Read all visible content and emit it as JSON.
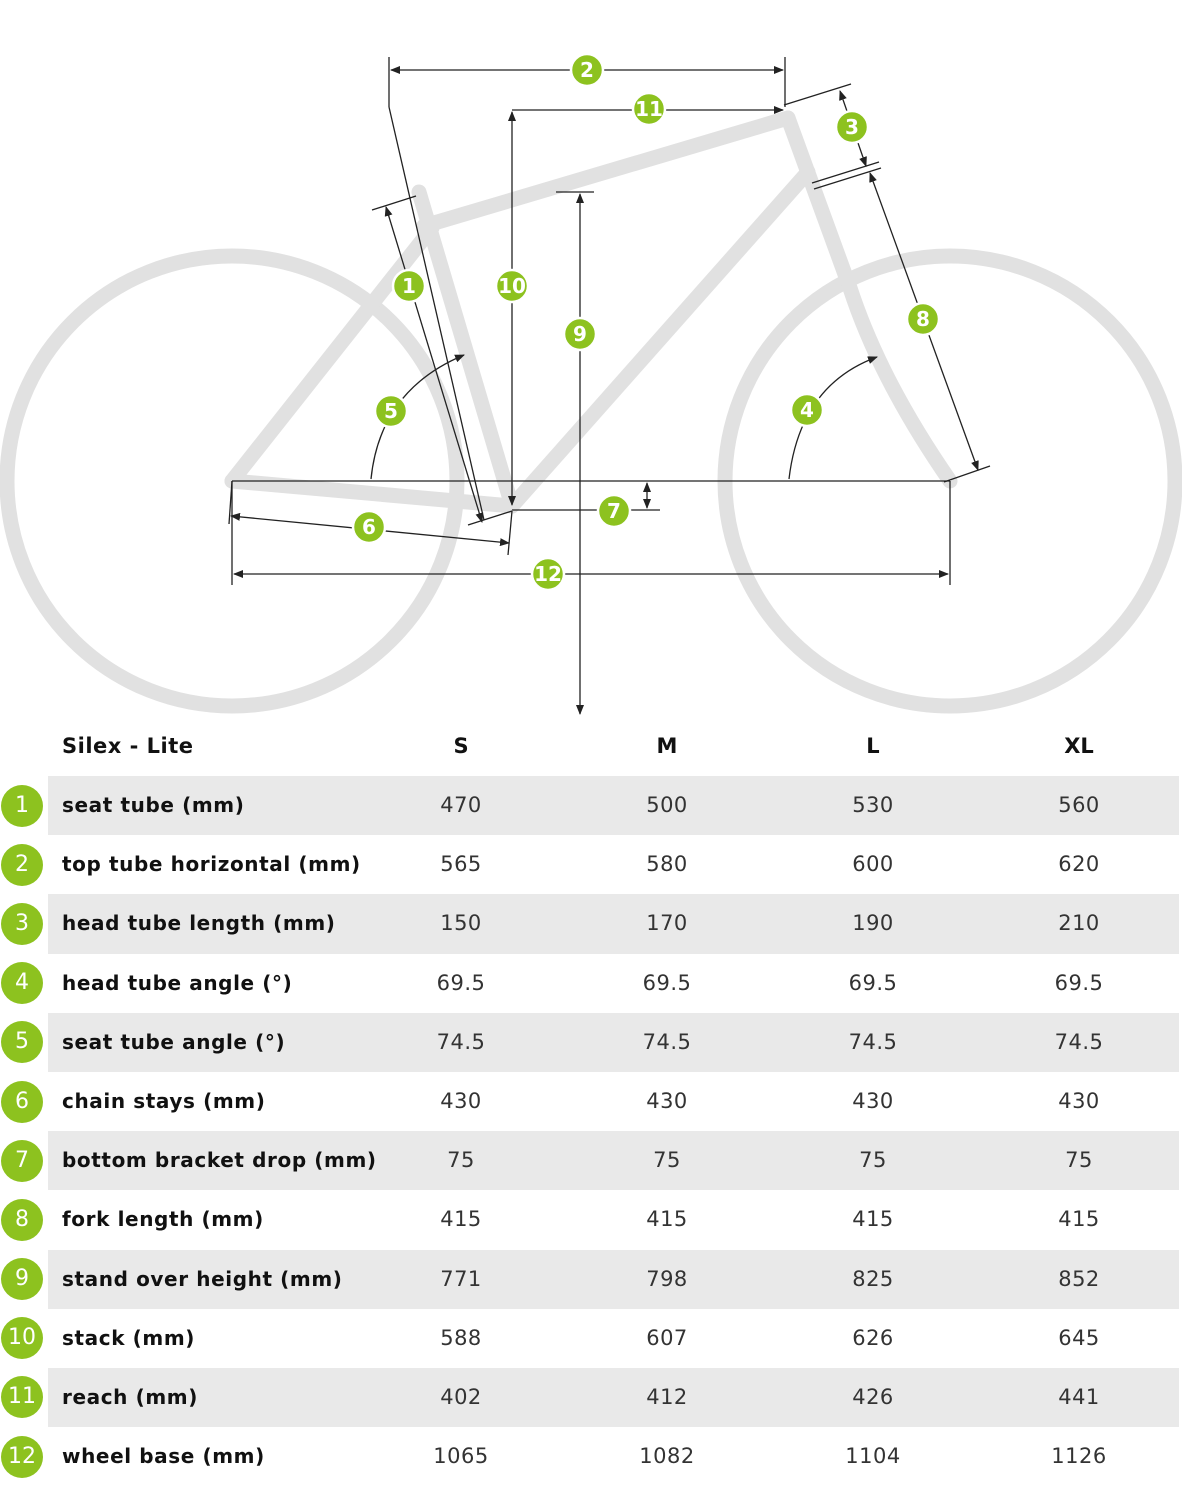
{
  "diagram": {
    "badges": [
      "1",
      "2",
      "3",
      "4",
      "5",
      "6",
      "7",
      "8",
      "9",
      "10",
      "11",
      "12"
    ]
  },
  "table": {
    "model": "Silex - Lite",
    "sizes": [
      "S",
      "M",
      "L",
      "XL"
    ],
    "rows": [
      {
        "num": "1",
        "label": "seat tube (mm)",
        "values": [
          "470",
          "500",
          "530",
          "560"
        ]
      },
      {
        "num": "2",
        "label": "top tube horizontal (mm)",
        "values": [
          "565",
          "580",
          "600",
          "620"
        ]
      },
      {
        "num": "3",
        "label": "head tube length (mm)",
        "values": [
          "150",
          "170",
          "190",
          "210"
        ]
      },
      {
        "num": "4",
        "label": "head tube angle (°)",
        "values": [
          "69.5",
          "69.5",
          "69.5",
          "69.5"
        ]
      },
      {
        "num": "5",
        "label": "seat tube angle (°)",
        "values": [
          "74.5",
          "74.5",
          "74.5",
          "74.5"
        ]
      },
      {
        "num": "6",
        "label": "chain stays (mm)",
        "values": [
          "430",
          "430",
          "430",
          "430"
        ]
      },
      {
        "num": "7",
        "label": "bottom bracket drop (mm)",
        "values": [
          "75",
          "75",
          "75",
          "75"
        ]
      },
      {
        "num": "8",
        "label": "fork length (mm)",
        "values": [
          "415",
          "415",
          "415",
          "415"
        ]
      },
      {
        "num": "9",
        "label": "stand over height (mm)",
        "values": [
          "771",
          "798",
          "825",
          "852"
        ]
      },
      {
        "num": "10",
        "label": "stack (mm)",
        "values": [
          "588",
          "607",
          "626",
          "645"
        ]
      },
      {
        "num": "11",
        "label": "reach (mm)",
        "values": [
          "402",
          "412",
          "426",
          "441"
        ]
      },
      {
        "num": "12",
        "label": "wheel base (mm)",
        "values": [
          "1065",
          "1082",
          "1104",
          "1126"
        ]
      }
    ]
  },
  "colors": {
    "accent": "#8dc21f",
    "row_alt": "#e9e9e9",
    "frame": "#e1e1e1"
  }
}
